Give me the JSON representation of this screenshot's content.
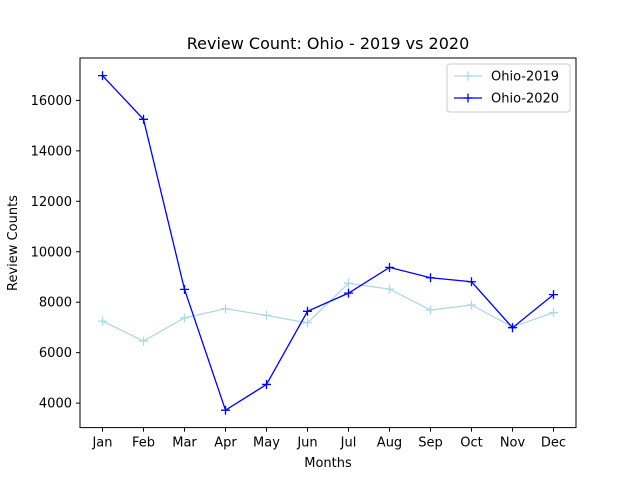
{
  "chart_data": {
    "type": "line",
    "title": "Review Count: Ohio - 2019 vs 2020",
    "xlabel": "Months",
    "ylabel": "Review Counts",
    "categories": [
      "Jan",
      "Feb",
      "Mar",
      "Apr",
      "May",
      "Jun",
      "Jul",
      "Aug",
      "Sep",
      "Oct",
      "Nov",
      "Dec"
    ],
    "yticks": [
      4000,
      6000,
      8000,
      10000,
      12000,
      14000,
      16000
    ],
    "ylim": [
      3030,
      17680
    ],
    "grid": false,
    "legend_position": "top-right",
    "marker": "plus",
    "series": [
      {
        "name": "Ohio-2019",
        "color": "#add8e6",
        "values": [
          7250,
          6460,
          7380,
          7740,
          7480,
          7180,
          8750,
          8520,
          7690,
          7890,
          7020,
          7590
        ]
      },
      {
        "name": "Ohio-2020",
        "color": "#0000ff",
        "values": [
          16980,
          15250,
          8510,
          3720,
          4740,
          7640,
          8360,
          9380,
          8970,
          8810,
          6990,
          8300
        ]
      }
    ]
  }
}
